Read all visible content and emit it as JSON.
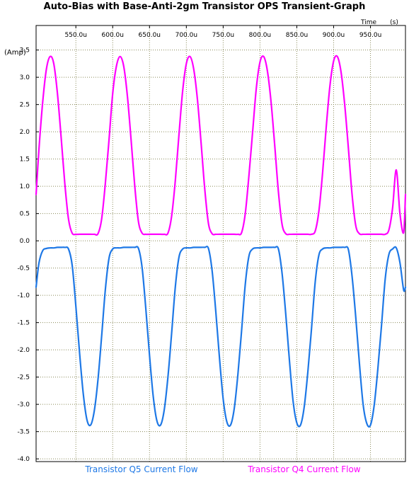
{
  "chart_data": {
    "type": "line",
    "title": "Auto-Bias with Base-Anti-2gm Transistor OPS Transient-Graph",
    "xlabel": "Time",
    "x_unit": "(s)",
    "ylabel": "(Amp)",
    "xlim": [
      0.000496,
      0.0009975
    ],
    "ylim": [
      -4.05,
      3.95
    ],
    "x_ticks": [
      0.00055,
      0.0006,
      0.00065,
      0.0007,
      0.00075,
      0.0008,
      0.00085,
      0.0009,
      0.00095
    ],
    "x_tick_labels": [
      "550.0u",
      "600.0u",
      "650.0u",
      "700.0u",
      "750.0u",
      "800.0u",
      "850.0u",
      "900.0u",
      "950.0u"
    ],
    "y_ticks": [
      3.5,
      3.0,
      2.5,
      2.0,
      1.5,
      1.0,
      0.5,
      0.0,
      -0.5,
      -1.0,
      -1.5,
      -2.0,
      -2.5,
      -3.0,
      -3.5,
      -4.0
    ],
    "y_tick_labels": [
      "3.5",
      "3.0",
      "2.5",
      "2.0",
      "1.5",
      "1.0",
      "0.5",
      "0.0",
      "-0.5",
      "-1.0",
      "-1.5",
      "-2.0",
      "-2.5",
      "-3.0",
      "-3.5",
      "-4.0"
    ],
    "grid": true,
    "legend_position": "bottom",
    "series": [
      {
        "name": "Transistor Q4 Current Flow",
        "color": "#ff00ff",
        "x": [
          0.000496,
          0.0005,
          0.000505,
          0.00051,
          0.000515,
          0.00052,
          0.000525,
          0.00053,
          0.000535,
          0.00054,
          0.000545,
          0.00055,
          0.000555,
          0.00056,
          0.000565,
          0.00057,
          0.000575,
          0.00058,
          0.000585,
          0.00059,
          0.000595,
          0.0006,
          0.000605,
          0.00061,
          0.000615,
          0.00062,
          0.000625,
          0.00063,
          0.000635,
          0.00064,
          0.000645,
          0.00065,
          0.000655,
          0.00066,
          0.000665,
          0.00067,
          0.000675,
          0.00068,
          0.000685,
          0.00069,
          0.000695,
          0.0007,
          0.000705,
          0.00071,
          0.000715,
          0.00072,
          0.000725,
          0.00073,
          0.000735,
          0.00074,
          0.000745,
          0.00075,
          0.000755,
          0.00076,
          0.000765,
          0.00077,
          0.000775,
          0.00078,
          0.000785,
          0.00079,
          0.000795,
          0.0008,
          0.000805,
          0.00081,
          0.000815,
          0.00082,
          0.000825,
          0.00083,
          0.000835,
          0.00084,
          0.000845,
          0.00085,
          0.000855,
          0.00086,
          0.000865,
          0.00087,
          0.000875,
          0.00088,
          0.000885,
          0.00089,
          0.000895,
          0.0009,
          0.000905,
          0.00091,
          0.000915,
          0.00092,
          0.000925,
          0.00093,
          0.000935,
          0.00094,
          0.000945,
          0.00095,
          0.000955,
          0.00096,
          0.000965,
          0.00097,
          0.000975,
          0.00098,
          0.000985,
          0.00099,
          0.000995,
          0.0009975
        ],
        "y": [
          0.85,
          1.7,
          2.55,
          3.15,
          3.38,
          3.25,
          2.7,
          1.9,
          1.05,
          0.4,
          0.14,
          0.12,
          0.12,
          0.12,
          0.12,
          0.12,
          0.12,
          0.13,
          0.4,
          1.05,
          1.85,
          2.7,
          3.2,
          3.38,
          3.2,
          2.65,
          1.85,
          1.0,
          0.35,
          0.14,
          0.12,
          0.12,
          0.12,
          0.12,
          0.12,
          0.12,
          0.14,
          0.45,
          1.1,
          1.95,
          2.75,
          3.25,
          3.38,
          3.15,
          2.6,
          1.8,
          0.95,
          0.32,
          0.13,
          0.12,
          0.12,
          0.12,
          0.12,
          0.12,
          0.12,
          0.12,
          0.15,
          0.5,
          1.2,
          2.0,
          2.8,
          3.28,
          3.38,
          3.12,
          2.55,
          1.75,
          0.9,
          0.3,
          0.13,
          0.12,
          0.12,
          0.12,
          0.12,
          0.12,
          0.12,
          0.12,
          0.18,
          0.55,
          1.25,
          2.1,
          2.85,
          3.3,
          3.38,
          3.1,
          2.5,
          1.7,
          0.85,
          0.28,
          0.13,
          0.12,
          0.12,
          0.12,
          0.12,
          0.12,
          0.12,
          0.12,
          0.2,
          0.6,
          1.3,
          0.5,
          0.15,
          0.85
        ]
      },
      {
        "name": "Transistor Q5 Current Flow",
        "color": "#1e78e6",
        "x": [
          0.000496,
          0.0005,
          0.000505,
          0.00051,
          0.000515,
          0.00052,
          0.000525,
          0.00053,
          0.000535,
          0.00054,
          0.000545,
          0.00055,
          0.000555,
          0.00056,
          0.000565,
          0.00057,
          0.000575,
          0.00058,
          0.000585,
          0.00059,
          0.000595,
          0.0006,
          0.000605,
          0.00061,
          0.000615,
          0.00062,
          0.000625,
          0.00063,
          0.000635,
          0.00064,
          0.000645,
          0.00065,
          0.000655,
          0.00066,
          0.000665,
          0.00067,
          0.000675,
          0.00068,
          0.000685,
          0.00069,
          0.000695,
          0.0007,
          0.000705,
          0.00071,
          0.000715,
          0.00072,
          0.000725,
          0.00073,
          0.000735,
          0.00074,
          0.000745,
          0.00075,
          0.000755,
          0.00076,
          0.000765,
          0.00077,
          0.000775,
          0.00078,
          0.000785,
          0.00079,
          0.000795,
          0.0008,
          0.000805,
          0.00081,
          0.000815,
          0.00082,
          0.000825,
          0.00083,
          0.000835,
          0.00084,
          0.000845,
          0.00085,
          0.000855,
          0.00086,
          0.000865,
          0.00087,
          0.000875,
          0.00088,
          0.000885,
          0.00089,
          0.000895,
          0.0009,
          0.000905,
          0.00091,
          0.000915,
          0.00092,
          0.000925,
          0.00093,
          0.000935,
          0.00094,
          0.000945,
          0.00095,
          0.000955,
          0.00096,
          0.000965,
          0.00097,
          0.000975,
          0.00098,
          0.000985,
          0.00099,
          0.000995,
          0.0009975
        ],
        "y": [
          -0.85,
          -0.4,
          -0.18,
          -0.14,
          -0.13,
          -0.13,
          -0.12,
          -0.12,
          -0.12,
          -0.15,
          -0.45,
          -1.2,
          -2.05,
          -2.8,
          -3.28,
          -3.38,
          -3.12,
          -2.55,
          -1.75,
          -0.9,
          -0.32,
          -0.15,
          -0.13,
          -0.13,
          -0.12,
          -0.12,
          -0.12,
          -0.12,
          -0.14,
          -0.5,
          -1.25,
          -2.1,
          -2.85,
          -3.3,
          -3.38,
          -3.1,
          -2.5,
          -1.7,
          -0.85,
          -0.3,
          -0.15,
          -0.13,
          -0.13,
          -0.12,
          -0.12,
          -0.12,
          -0.12,
          -0.14,
          -0.55,
          -1.3,
          -2.15,
          -2.9,
          -3.32,
          -3.38,
          -3.08,
          -2.45,
          -1.65,
          -0.8,
          -0.28,
          -0.15,
          -0.13,
          -0.13,
          -0.12,
          -0.12,
          -0.12,
          -0.12,
          -0.15,
          -0.6,
          -1.35,
          -2.2,
          -2.95,
          -3.34,
          -3.38,
          -3.05,
          -2.4,
          -1.6,
          -0.75,
          -0.26,
          -0.15,
          -0.13,
          -0.13,
          -0.12,
          -0.12,
          -0.12,
          -0.12,
          -0.16,
          -0.65,
          -1.4,
          -2.25,
          -3.0,
          -3.35,
          -3.38,
          -3.02,
          -2.35,
          -1.55,
          -0.7,
          -0.25,
          -0.15,
          -0.13,
          -0.4,
          -0.9,
          -0.85
        ]
      }
    ]
  }
}
